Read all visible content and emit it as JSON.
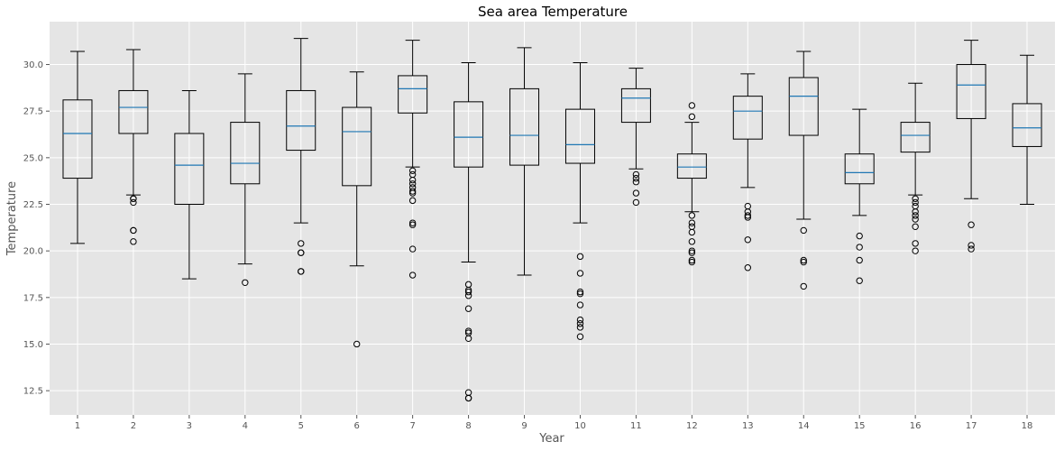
{
  "chart_data": {
    "type": "boxplot",
    "title": "Sea area Temperature",
    "xlabel": "Year",
    "ylabel": "Temperature",
    "ylim": [
      11.2,
      32.3
    ],
    "yticks": [
      12.5,
      15.0,
      17.5,
      20.0,
      22.5,
      25.0,
      27.5,
      30.0
    ],
    "ytick_labels": [
      "12.5",
      "15.0",
      "17.5",
      "20.0",
      "22.5",
      "25.0",
      "27.5",
      "30.0"
    ],
    "grid": true,
    "colors": {
      "background": "#e5e5e5",
      "grid": "#ffffff",
      "box": "#000000",
      "median": "#1f77b4",
      "tick_text": "#555555"
    },
    "categories": [
      "1",
      "2",
      "3",
      "4",
      "5",
      "6",
      "7",
      "8",
      "9",
      "10",
      "11",
      "12",
      "13",
      "14",
      "15",
      "16",
      "17",
      "18"
    ],
    "boxes": [
      {
        "category": "1",
        "whisker_low": 20.4,
        "q1": 23.9,
        "median": 26.3,
        "q3": 28.1,
        "whisker_high": 30.7,
        "fliers": []
      },
      {
        "category": "2",
        "whisker_low": 23.0,
        "q1": 26.3,
        "median": 27.7,
        "q3": 28.6,
        "whisker_high": 30.8,
        "fliers": [
          22.8,
          22.8,
          22.6,
          21.1,
          21.1,
          20.5
        ]
      },
      {
        "category": "3",
        "whisker_low": 18.5,
        "q1": 22.5,
        "median": 24.6,
        "q3": 26.3,
        "whisker_high": 28.6,
        "fliers": []
      },
      {
        "category": "4",
        "whisker_low": 19.3,
        "q1": 23.6,
        "median": 24.7,
        "q3": 26.9,
        "whisker_high": 29.5,
        "fliers": [
          18.3
        ]
      },
      {
        "category": "5",
        "whisker_low": 21.5,
        "q1": 25.4,
        "median": 26.7,
        "q3": 28.6,
        "whisker_high": 31.4,
        "fliers": [
          20.4,
          19.9,
          19.9,
          18.9,
          18.9
        ]
      },
      {
        "category": "6",
        "whisker_low": 19.2,
        "q1": 23.5,
        "median": 26.4,
        "q3": 27.7,
        "whisker_high": 29.6,
        "fliers": [
          15.0
        ]
      },
      {
        "category": "7",
        "whisker_low": 24.5,
        "q1": 27.4,
        "median": 28.7,
        "q3": 29.4,
        "whisker_high": 31.3,
        "fliers": [
          24.3,
          24.1,
          23.8,
          23.6,
          23.4,
          23.2,
          23.1,
          22.7,
          21.5,
          21.4,
          20.1,
          18.7
        ]
      },
      {
        "category": "8",
        "whisker_low": 19.4,
        "q1": 24.5,
        "median": 26.1,
        "q3": 28.0,
        "whisker_high": 30.1,
        "fliers": [
          18.2,
          17.9,
          17.8,
          17.6,
          16.9,
          15.7,
          15.6,
          15.3,
          12.4,
          12.1,
          12.1
        ]
      },
      {
        "category": "9",
        "whisker_low": 18.7,
        "q1": 24.6,
        "median": 26.2,
        "q3": 28.7,
        "whisker_high": 30.9,
        "fliers": []
      },
      {
        "category": "10",
        "whisker_low": 21.5,
        "q1": 24.7,
        "median": 25.7,
        "q3": 27.6,
        "whisker_high": 30.1,
        "fliers": [
          19.7,
          18.8,
          17.8,
          17.7,
          17.1,
          16.3,
          16.1,
          15.9,
          15.4
        ]
      },
      {
        "category": "11",
        "whisker_low": 24.4,
        "q1": 26.9,
        "median": 28.2,
        "q3": 28.7,
        "whisker_high": 29.8,
        "fliers": [
          24.1,
          23.9,
          23.7,
          23.1,
          22.6
        ]
      },
      {
        "category": "12",
        "whisker_low": 22.1,
        "q1": 23.9,
        "median": 24.5,
        "q3": 25.2,
        "whisker_high": 26.9,
        "fliers": [
          27.8,
          27.2,
          21.9,
          21.5,
          21.3,
          21.0,
          20.5,
          20.0,
          19.9,
          19.5,
          19.4
        ]
      },
      {
        "category": "13",
        "whisker_low": 23.4,
        "q1": 26.0,
        "median": 27.5,
        "q3": 28.3,
        "whisker_high": 29.5,
        "fliers": [
          22.4,
          22.1,
          21.9,
          21.8,
          20.6,
          19.1
        ]
      },
      {
        "category": "14",
        "whisker_low": 21.7,
        "q1": 26.2,
        "median": 28.3,
        "q3": 29.3,
        "whisker_high": 30.7,
        "fliers": [
          21.1,
          19.5,
          19.4,
          18.1
        ]
      },
      {
        "category": "15",
        "whisker_low": 21.9,
        "q1": 23.6,
        "median": 24.2,
        "q3": 25.2,
        "whisker_high": 27.6,
        "fliers": [
          20.8,
          20.2,
          19.5,
          18.4
        ]
      },
      {
        "category": "16",
        "whisker_low": 23.0,
        "q1": 25.3,
        "median": 26.2,
        "q3": 26.9,
        "whisker_high": 29.0,
        "fliers": [
          22.8,
          22.6,
          22.4,
          22.1,
          21.9,
          21.7,
          21.3,
          20.4,
          20.0
        ]
      },
      {
        "category": "17",
        "whisker_low": 22.8,
        "q1": 27.1,
        "median": 28.9,
        "q3": 30.0,
        "whisker_high": 31.3,
        "fliers": [
          21.4,
          20.3,
          20.1
        ]
      },
      {
        "category": "18",
        "whisker_low": 22.5,
        "q1": 25.6,
        "median": 26.6,
        "q3": 27.9,
        "whisker_high": 30.5,
        "fliers": []
      }
    ]
  }
}
